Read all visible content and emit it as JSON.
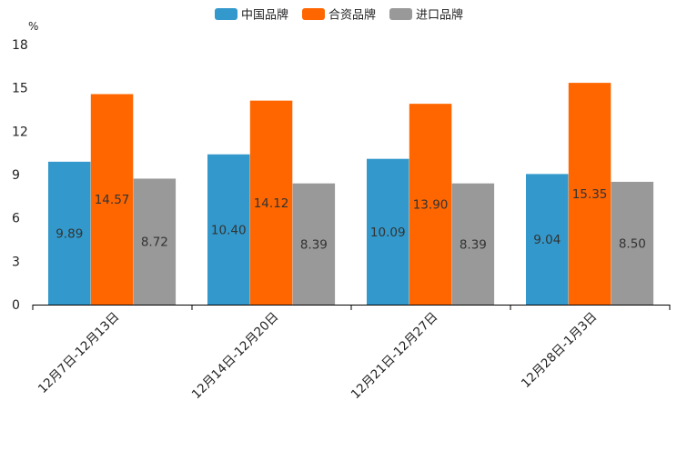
{
  "chart_data": {
    "type": "bar",
    "title": "",
    "ylabel": "%",
    "xlabel": "",
    "ylim": [
      0,
      18
    ],
    "yticks": [
      0,
      3,
      6,
      9,
      12,
      15,
      18
    ],
    "legend_position": "top-center",
    "categories": [
      "12月7日-12月13日",
      "12月14日-12月20日",
      "12月21日-12月27日",
      "12月28日-1月3日"
    ],
    "series": [
      {
        "name": "中国品牌",
        "color": "#3399cc",
        "values": [
          9.89,
          10.4,
          10.09,
          9.04
        ],
        "labels": [
          "9.89",
          "10.40",
          "10.09",
          "9.04"
        ]
      },
      {
        "name": "合资品牌",
        "color": "#ff6600",
        "values": [
          14.57,
          14.12,
          13.9,
          15.35
        ],
        "labels": [
          "14.57",
          "14.12",
          "13.90",
          "15.35"
        ]
      },
      {
        "name": "进口品牌",
        "color": "#999999",
        "values": [
          8.72,
          8.39,
          8.39,
          8.5
        ],
        "labels": [
          "8.72",
          "8.39",
          "8.39",
          "8.50"
        ]
      }
    ]
  }
}
